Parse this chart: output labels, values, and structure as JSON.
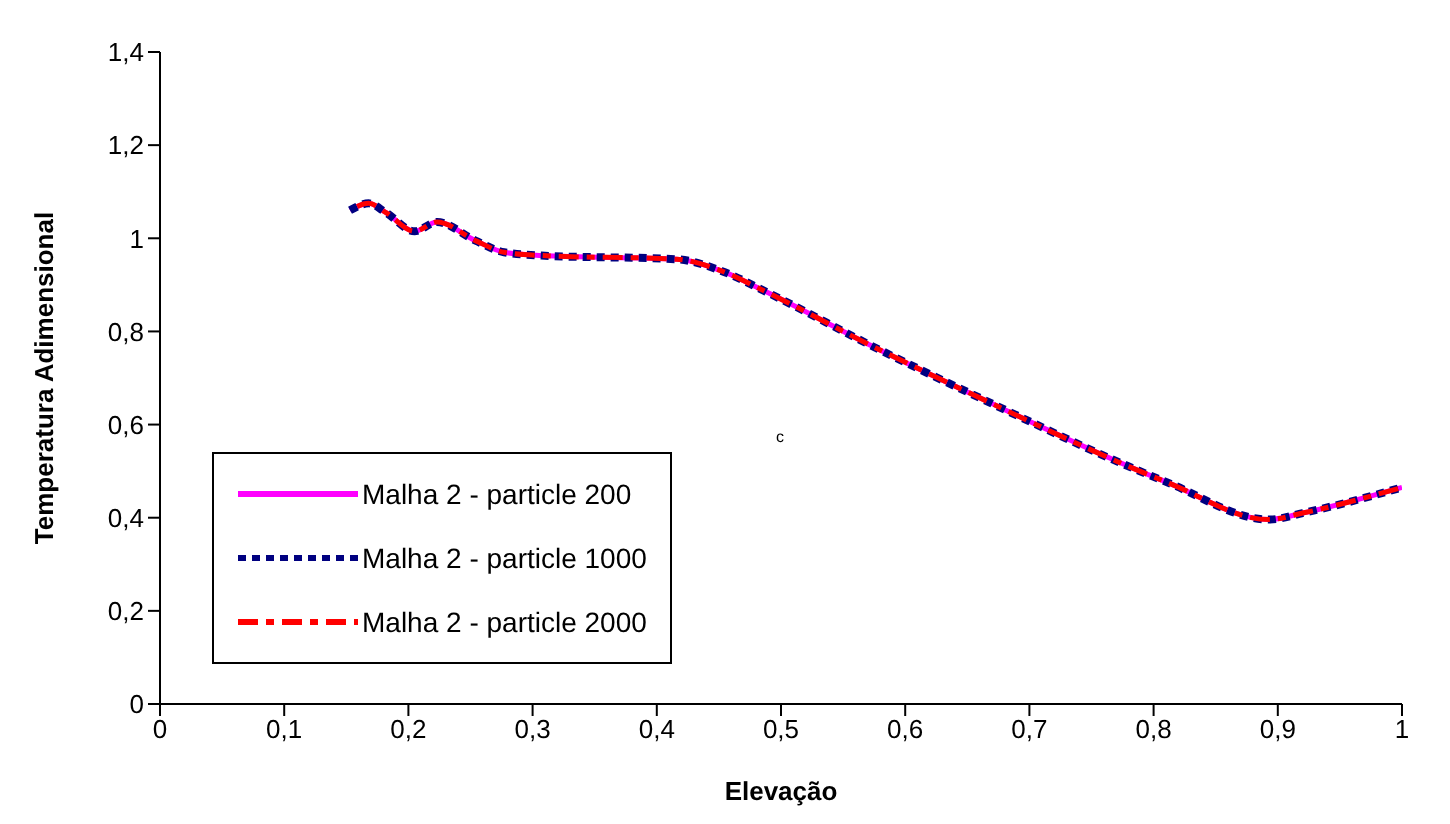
{
  "chart_data": {
    "type": "line",
    "xlabel": "Elevação",
    "ylabel": "Temperatura Adimensional",
    "x": [
      0.153,
      0.168,
      0.182,
      0.205,
      0.223,
      0.254,
      0.277,
      0.307,
      0.416,
      0.452,
      0.488,
      0.576,
      0.654,
      0.81,
      0.893,
      0.92,
      1.0
    ],
    "series": [
      {
        "name": "Malha 2 - particle 200",
        "color": "#ff00ff",
        "line_style": "solid",
        "values": [
          1.06,
          1.075,
          1.055,
          1.015,
          1.035,
          0.995,
          0.97,
          0.963,
          0.955,
          0.93,
          0.885,
          0.765,
          0.665,
          0.477,
          0.396,
          0.41,
          0.465
        ]
      },
      {
        "name": "Malha 2 - particle 1000",
        "color": "#000080",
        "line_style": "dotted",
        "values": [
          1.06,
          1.075,
          1.055,
          1.015,
          1.035,
          0.995,
          0.97,
          0.963,
          0.955,
          0.93,
          0.885,
          0.765,
          0.665,
          0.477,
          0.396,
          0.41,
          0.465
        ]
      },
      {
        "name": "Malha 2 - particle 2000",
        "color": "#ff0000",
        "line_style": "dashed",
        "values": [
          1.06,
          1.075,
          1.055,
          1.015,
          1.035,
          0.995,
          0.97,
          0.963,
          0.955,
          0.93,
          0.885,
          0.765,
          0.665,
          0.477,
          0.396,
          0.41,
          0.465
        ]
      }
    ],
    "xlim": [
      0,
      1
    ],
    "xticks": [
      {
        "value": 0,
        "label": "0"
      },
      {
        "value": 0.1,
        "label": "0,1"
      },
      {
        "value": 0.2,
        "label": "0,2"
      },
      {
        "value": 0.3,
        "label": "0,3"
      },
      {
        "value": 0.4,
        "label": "0,4"
      },
      {
        "value": 0.5,
        "label": "0,5"
      },
      {
        "value": 0.6,
        "label": "0,6"
      },
      {
        "value": 0.7,
        "label": "0,7"
      },
      {
        "value": 0.8,
        "label": "0,8"
      },
      {
        "value": 0.9,
        "label": "0,9"
      },
      {
        "value": 1,
        "label": "1"
      }
    ],
    "ylim": [
      0,
      1.4
    ],
    "yticks": [
      {
        "value": 0,
        "label": "0"
      },
      {
        "value": 0.2,
        "label": "0,2"
      },
      {
        "value": 0.4,
        "label": "0,4"
      },
      {
        "value": 0.6,
        "label": "0,6"
      },
      {
        "value": 0.8,
        "label": "0,8"
      },
      {
        "value": 1,
        "label": "1"
      },
      {
        "value": 1.2,
        "label": "1,2"
      },
      {
        "value": 1.4,
        "label": "1,4"
      }
    ],
    "legend": "bottom left",
    "annotations": [
      "c"
    ]
  }
}
